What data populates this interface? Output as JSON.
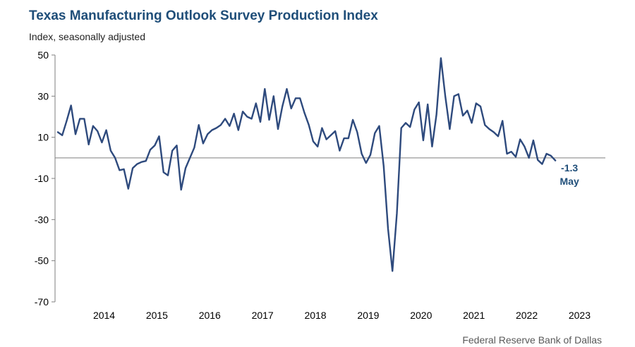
{
  "header": {
    "title": "Texas Manufacturing Outlook Survey Production Index",
    "subtitle": "Index, seasonally adjusted"
  },
  "footer": {
    "source": "Federal Reserve Bank of Dallas"
  },
  "colors": {
    "line": "#2e4a7d",
    "title": "#1f4e79",
    "axis": "#7f7f7f"
  },
  "chart_data": {
    "type": "line",
    "title": "Texas Manufacturing Outlook Survey Production Index",
    "subtitle": "Index, seasonally adjusted",
    "xlabel": "",
    "ylabel": "",
    "ylim": [
      -70,
      50
    ],
    "yticks": [
      50,
      30,
      10,
      -10,
      -30,
      -50,
      -70
    ],
    "grid": false,
    "x_start": "2013-08",
    "frequency": "monthly",
    "xtick_labels": [
      "2014",
      "2015",
      "2016",
      "2017",
      "2018",
      "2019",
      "2020",
      "2021",
      "2022",
      "2023"
    ],
    "annotation": {
      "value": "-1.3",
      "label": "May"
    },
    "series": [
      {
        "values": [
          12.5,
          11,
          18,
          25.5,
          11.5,
          19,
          19,
          6.5,
          15.5,
          13,
          7.5,
          13.5,
          3.5,
          0,
          -6,
          -5.5,
          -15,
          -5,
          -3,
          -2,
          -1.5,
          4,
          6,
          10.5,
          -7,
          -8.5,
          3.5,
          6,
          -15.5,
          -5,
          0,
          5,
          16,
          7,
          11.5,
          13.5,
          14.5,
          16,
          19,
          15.5,
          21.5,
          13.5,
          22.5,
          20,
          19,
          26.5,
          17.5,
          33.5,
          18.5,
          30,
          14,
          25,
          33.5,
          24,
          29,
          29,
          22,
          16,
          8,
          5.5,
          14.5,
          9,
          11,
          13,
          3.5,
          9.5,
          9.5,
          18.5,
          12.5,
          2,
          -2.5,
          1.5,
          12,
          15.5,
          -4,
          -34.5,
          -55,
          -27,
          14.5,
          17,
          15,
          23.5,
          27,
          8.5,
          26,
          5.5,
          21,
          48.5,
          30,
          14,
          30,
          31,
          20.5,
          23,
          17,
          26.5,
          25,
          16,
          14,
          12.5,
          10.5,
          18,
          2,
          3,
          0.5,
          9,
          5.5,
          0,
          8.5,
          -1,
          -3,
          2,
          1,
          -1.3
        ]
      }
    ]
  }
}
